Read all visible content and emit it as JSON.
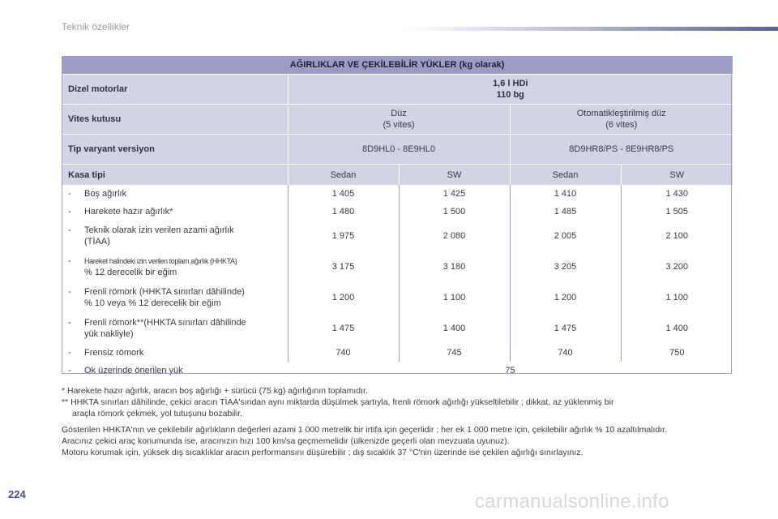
{
  "header": {
    "title": "Teknik özellikler"
  },
  "page_number": "224",
  "watermark": "carmanualsonline.info",
  "table": {
    "title": "AĞIRLIKLAR VE ÇEKİLEBİLİR YÜKLER (kg olarak)",
    "engine": {
      "label": "Dizel motorlar",
      "line1": "1,6 l HDi",
      "line2": "110 bg"
    },
    "gearbox": {
      "label": "Vites kutusu",
      "manual_line1": "Düz",
      "manual_line2": "(5 vites)",
      "auto_line1": "Otomatikleştirilmiş düz",
      "auto_line2": "(6 vites)"
    },
    "variant": {
      "label": "Tip varyant versiyon",
      "manual": "8D9HL0 - 8E9HL0",
      "auto": "8D9HR8/PS - 8E9HR8/PS"
    },
    "body": {
      "label": "Kasa tipi",
      "cols": [
        "Sedan",
        "SW",
        "Sedan",
        "SW"
      ]
    },
    "rows": [
      {
        "dash": "-",
        "line1": "Boş ağırlık",
        "line2": "",
        "values": [
          "1 405",
          "1 425",
          "1 410",
          "1 430"
        ]
      },
      {
        "dash": "-",
        "line1": "Harekete hazır ağırlık*",
        "line2": "",
        "values": [
          "1 480",
          "1 500",
          "1 485",
          "1 505"
        ]
      },
      {
        "dash": "-",
        "line1": "Teknik olarak izin verilen azami ağırlık",
        "line2": "(TİAA)",
        "values": [
          "1 975",
          "2 080",
          "2 005",
          "2 100"
        ]
      },
      {
        "dash": "-",
        "line1": "Hareket halindeki izin verilen toplam ağırlık (HHKTA)",
        "line2": "% 12 derecelik bir eğim",
        "values": [
          "3 175",
          "3 180",
          "3 205",
          "3 200"
        ]
      },
      {
        "dash": "-",
        "line1": "Frenli römork (HHKTA sınırları dâhilinde)",
        "line2": "% 10 veya % 12 derecelik bir eğim",
        "values": [
          "1 200",
          "1 100",
          "1 200",
          "1 100"
        ]
      },
      {
        "dash": "-",
        "line1": "Frenli römork**(HHKTA sınırları dâhilinde",
        "line2": "yük nakliyle)",
        "values": [
          "1 475",
          "1 400",
          "1 475",
          "1 400"
        ]
      },
      {
        "dash": "-",
        "line1": "Frensiz römork",
        "line2": "",
        "values": [
          "740",
          "745",
          "740",
          "750"
        ]
      }
    ],
    "hitch_row": {
      "dash": "-",
      "label": "Ok üzerinde önerilen yük",
      "value": "75"
    }
  },
  "notes": {
    "star1": "* Harekete hazır ağırlık, aracın boş ağırlığı + sürücü (75 kg) ağırlığının toplamıdır.",
    "star2_line1": "** HHKTA sınırları dâhilinde, çekici aracın TİAA'sından aynı miktarda düşülmek şartıyla, frenli römork ağırlığı yükseltilebilir ; dikkat, az yüklenmiş bir",
    "star2_line2": "araçla römork çekmek, yol tutuşunu bozabilir.",
    "para1": "Gösterilen HHKTA'nın ve çekilebilir ağırlıkların değerleri azami 1 000 metrelik bir irtifa için geçerlidir ; her ek 1 000 metre için, çekilebilir ağırlık % 10 azaltılmalıdır.",
    "para2": "Aracınız çekici araç konumunda ise, aracınızın hızı 100 km/sa geçmemelidir (ülkenizde geçerli olan mevzuata uyunuz).",
    "para3": "Motoru korumak için, yüksek dış sıcaklıklar aracın performansını düşürebilir ; dış sıcaklık 37 °C'nin üzerinde ise çekilen ağırlığı sınırlayınız."
  }
}
